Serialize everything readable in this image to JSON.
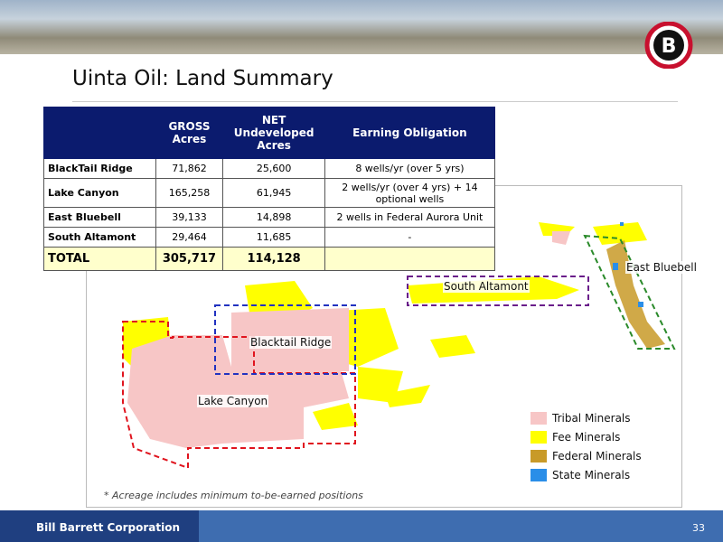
{
  "header": {
    "logo": "B",
    "title": "Uinta Oil: Land Summary"
  },
  "table": {
    "headers": [
      "GROSS Acres",
      "NET Undeveloped Acres",
      "Earning Obligation"
    ],
    "rows": [
      [
        "BlackTail Ridge",
        "71,862",
        "25,600",
        "8 wells/yr  (over 5 yrs)"
      ],
      [
        "Lake Canyon",
        "165,258",
        "61,945",
        "2 wells/yr  (over 4 yrs) + 14 optional wells"
      ],
      [
        "East Bluebell",
        "39,133",
        "14,898",
        "2 wells in Federal Aurora Unit"
      ],
      [
        "South Altamont",
        "29,464",
        "11,685",
        "-"
      ]
    ],
    "total": [
      "TOTAL",
      "305,717",
      "114,128"
    ]
  },
  "map": {
    "labels": [
      "South Altamont",
      "East Bluebell",
      "Blacktail Ridge",
      "Lake Canyon"
    ],
    "legend": [
      {
        "name": "Tribal Minerals",
        "color": "#f7c6c6"
      },
      {
        "name": "Fee Minerals",
        "color": "#ffff00"
      },
      {
        "name": "Federal Minerals",
        "color": "#c89a28"
      },
      {
        "name": "State Minerals",
        "color": "#2a8ee8"
      }
    ],
    "footnote": "* Acreage includes minimum to-be-earned positions"
  },
  "footer": {
    "company": "Bill Barrett Corporation",
    "page": "33"
  }
}
